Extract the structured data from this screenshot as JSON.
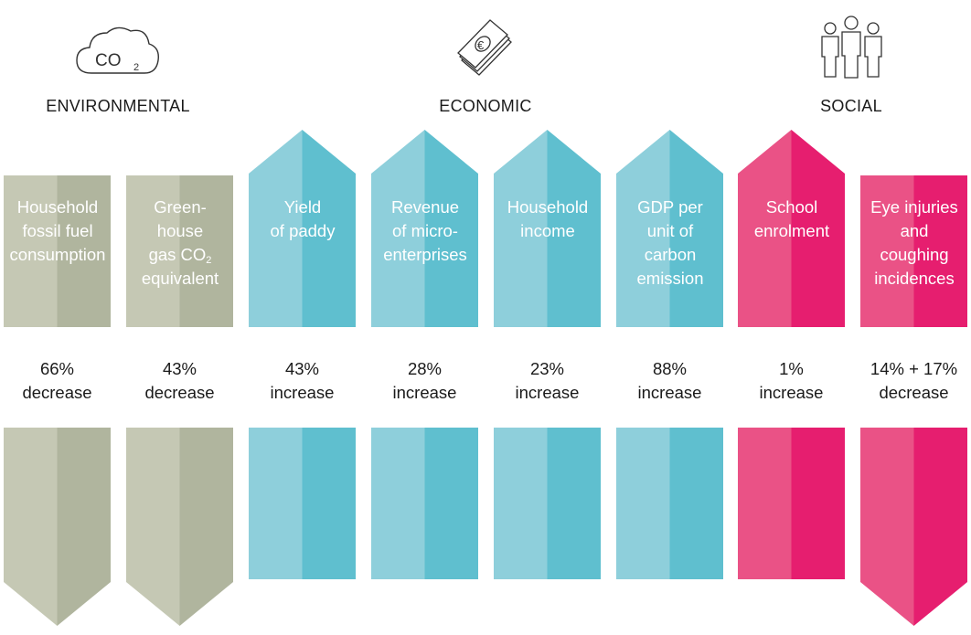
{
  "categories": [
    {
      "label": "ENVIRONMENTAL",
      "icon": "co2-cloud-icon",
      "icon_text": "CO",
      "icon_sub": "2"
    },
    {
      "label": "ECONOMIC",
      "icon": "euro-money-stack-icon"
    },
    {
      "label": "SOCIAL",
      "icon": "people-group-icon"
    }
  ],
  "colors": {
    "environmental": {
      "light": "#c5c8b4",
      "dark": "#b0b59e"
    },
    "economic": {
      "light": "#8ecfdb",
      "dark": "#5fbfcf"
    },
    "social": {
      "light": "#ea5286",
      "dark": "#e61e6f"
    }
  },
  "indicators": [
    {
      "label_lines": [
        "Household",
        "fossil fuel",
        "consumption"
      ],
      "value": "66%",
      "change": "decrease",
      "group": "environmental"
    },
    {
      "label_lines": [
        "Green-",
        "house",
        "gas CO",
        "equivalent"
      ],
      "label_sub": "2",
      "value": "43%",
      "change": "decrease",
      "group": "environmental"
    },
    {
      "label_lines": [
        "Yield",
        "of paddy"
      ],
      "value": "43%",
      "change": "increase",
      "group": "economic"
    },
    {
      "label_lines": [
        "Revenue",
        "of micro-",
        "enterprises"
      ],
      "value": "28%",
      "change": "increase",
      "group": "economic"
    },
    {
      "label_lines": [
        "Household",
        "income"
      ],
      "value": "23%",
      "change": "increase",
      "group": "economic"
    },
    {
      "label_lines": [
        "GDP per",
        "unit of",
        "carbon",
        "emission"
      ],
      "value": "88%",
      "change": "increase",
      "group": "economic"
    },
    {
      "label_lines": [
        "School",
        "enrolment"
      ],
      "value": "1%",
      "change": "increase",
      "group": "social"
    },
    {
      "label_lines": [
        "Eye injuries",
        "and",
        "coughing",
        "incidences"
      ],
      "value": "14% + 17%",
      "change": "decrease",
      "group": "social"
    }
  ]
}
